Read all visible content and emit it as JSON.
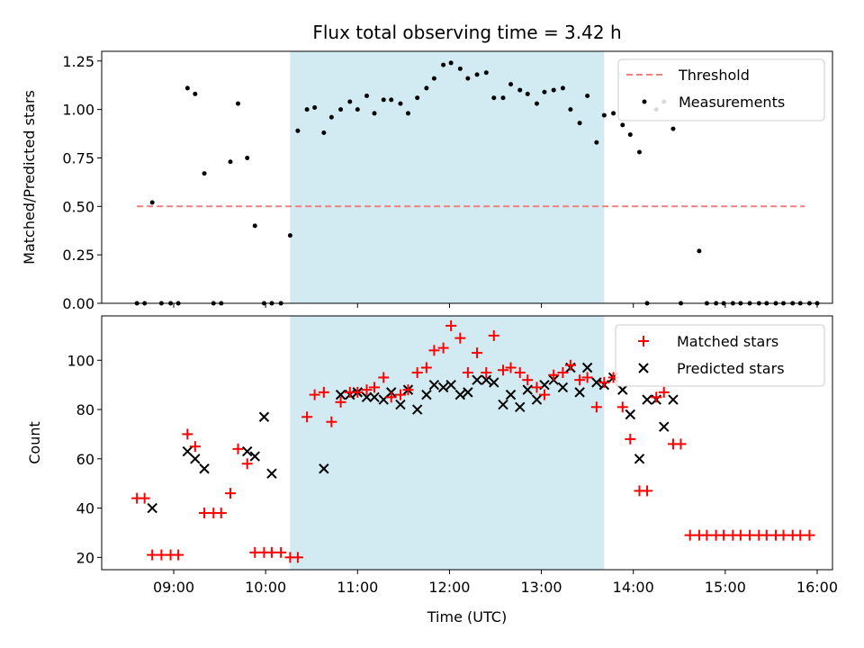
{
  "colors": {
    "threshold": "#f08080",
    "measurement": "#000000",
    "matched": "#ff0000",
    "predicted": "#000000",
    "shade": "#add8e6"
  },
  "chart_data": [
    {
      "type": "scatter",
      "title": "Flux total observing time = 3.42 h",
      "xlabel": "",
      "ylabel": "Matched/Predicted stars",
      "x_unit": "hours UTC",
      "xlim": [
        "08:13",
        "16:10"
      ],
      "ylim": [
        0,
        1.3
      ],
      "yticks": [
        "0.00",
        "0.25",
        "0.50",
        "0.75",
        "1.00",
        "1.25"
      ],
      "ytick_values": [
        0,
        0.25,
        0.5,
        0.75,
        1.0,
        1.25
      ],
      "shaded_interval": [
        "10:16",
        "13:41"
      ],
      "legend": {
        "position": "top-right",
        "entries": [
          "Threshold",
          "Measurements"
        ]
      },
      "threshold": {
        "name": "Threshold",
        "value": 0.5,
        "x": [
          "08:36",
          "15:52"
        ]
      },
      "series": [
        {
          "name": "Measurements",
          "x": [
            "08:36",
            "08:41",
            "08:46",
            "08:52",
            "08:58",
            "09:03",
            "09:09",
            "09:14",
            "09:20",
            "09:26",
            "09:31",
            "09:37",
            "09:42",
            "09:48",
            "09:53",
            "09:59",
            "10:04",
            "10:10",
            "10:16",
            "10:21",
            "10:27",
            "10:32",
            "10:38",
            "10:43",
            "10:49",
            "10:55",
            "11:00",
            "11:06",
            "11:11",
            "11:17",
            "11:22",
            "11:28",
            "11:33",
            "11:39",
            "11:45",
            "11:50",
            "11:56",
            "12:01",
            "12:07",
            "12:12",
            "12:18",
            "12:24",
            "12:29",
            "12:35",
            "12:40",
            "12:46",
            "12:51",
            "12:57",
            "13:02",
            "13:08",
            "13:14",
            "13:19",
            "13:25",
            "13:30",
            "13:36",
            "13:41",
            "13:47",
            "13:53",
            "13:58",
            "14:04",
            "14:09",
            "14:15",
            "14:20",
            "14:26",
            "14:31",
            "14:37",
            "14:43",
            "14:48",
            "14:54",
            "14:59",
            "15:05",
            "15:10",
            "15:16",
            "15:22",
            "15:27",
            "15:33",
            "15:38",
            "15:44",
            "15:49",
            "15:55",
            "16:00"
          ],
          "y": [
            0,
            0,
            0.52,
            0,
            0,
            0,
            1.11,
            1.08,
            0.67,
            0,
            0,
            0.73,
            1.03,
            0.75,
            0.4,
            0,
            0,
            0,
            0.35,
            0.89,
            1.0,
            1.01,
            0.88,
            0.96,
            1.0,
            1.04,
            1.0,
            1.07,
            0.98,
            1.05,
            1.05,
            1.03,
            0.98,
            1.06,
            1.11,
            1.16,
            1.23,
            1.24,
            1.21,
            1.16,
            1.18,
            1.19,
            1.06,
            1.06,
            1.13,
            1.1,
            1.08,
            1.03,
            1.09,
            1.1,
            1.11,
            1.0,
            0.93,
            1.07,
            0.83,
            0.97,
            0.98,
            0.92,
            0.87,
            0.78,
            0,
            1.0,
            1.04,
            0.9,
            0,
            1.02,
            0.27,
            0,
            0,
            0,
            0,
            0,
            0,
            0,
            0,
            0,
            0,
            0,
            0,
            0,
            0
          ]
        }
      ]
    },
    {
      "type": "scatter",
      "title": "",
      "xlabel": "Time (UTC)",
      "ylabel": "Count",
      "x_unit": "hours UTC",
      "xlim": [
        "08:13",
        "16:10"
      ],
      "ylim": [
        15,
        118
      ],
      "xticks": [
        "09:00",
        "10:00",
        "11:00",
        "12:00",
        "13:00",
        "14:00",
        "15:00",
        "16:00"
      ],
      "yticks": [
        "20",
        "40",
        "60",
        "80",
        "100"
      ],
      "ytick_values": [
        20,
        40,
        60,
        80,
        100
      ],
      "shaded_interval": [
        "10:16",
        "13:41"
      ],
      "legend": {
        "position": "top-right",
        "entries": [
          "Matched stars",
          "Predicted stars"
        ]
      },
      "series": [
        {
          "name": "Matched stars",
          "x": [
            "08:36",
            "08:41",
            "08:46",
            "08:52",
            "08:58",
            "09:03",
            "09:09",
            "09:14",
            "09:20",
            "09:26",
            "09:31",
            "09:37",
            "09:42",
            "09:48",
            "09:53",
            "09:59",
            "10:04",
            "10:10",
            "10:16",
            "10:21",
            "10:27",
            "10:32",
            "10:38",
            "10:43",
            "10:49",
            "10:55",
            "11:00",
            "11:06",
            "11:11",
            "11:17",
            "11:22",
            "11:28",
            "11:33",
            "11:39",
            "11:45",
            "11:50",
            "11:56",
            "12:01",
            "12:07",
            "12:12",
            "12:18",
            "12:24",
            "12:29",
            "12:35",
            "12:40",
            "12:46",
            "12:51",
            "12:57",
            "13:02",
            "13:08",
            "13:14",
            "13:19",
            "13:25",
            "13:30",
            "13:36",
            "13:41",
            "13:47",
            "13:53",
            "13:58",
            "14:04",
            "14:09",
            "14:15",
            "14:20",
            "14:26",
            "14:31",
            "14:37",
            "14:43",
            "14:48",
            "14:54",
            "14:59",
            "15:05",
            "15:10",
            "15:16",
            "15:22",
            "15:27",
            "15:33",
            "15:38",
            "15:44",
            "15:49",
            "15:55"
          ],
          "y": [
            44,
            44,
            21,
            21,
            21,
            21,
            70,
            65,
            38,
            38,
            38,
            46,
            64,
            58,
            22,
            22,
            22,
            22,
            20,
            20,
            77,
            86,
            87,
            75,
            83,
            87,
            87,
            88,
            89,
            93,
            85,
            86,
            88,
            95,
            97,
            104,
            105,
            114,
            109,
            95,
            103,
            95,
            110,
            96,
            97,
            95,
            92,
            89,
            86,
            94,
            95,
            98,
            92,
            93,
            81,
            91,
            93,
            81,
            68,
            47,
            47,
            85,
            87,
            66,
            66,
            29,
            29,
            29,
            29,
            29,
            29,
            29,
            29,
            29,
            29,
            29,
            29,
            29,
            29,
            29
          ]
        },
        {
          "name": "Predicted stars",
          "x": [
            "08:46",
            "09:09",
            "09:14",
            "09:20",
            "09:48",
            "09:53",
            "09:59",
            "10:04",
            "10:38",
            "10:49",
            "10:55",
            "11:00",
            "11:06",
            "11:11",
            "11:17",
            "11:22",
            "11:28",
            "11:33",
            "11:39",
            "11:45",
            "11:50",
            "11:56",
            "12:01",
            "12:07",
            "12:12",
            "12:18",
            "12:24",
            "12:29",
            "12:35",
            "12:40",
            "12:46",
            "12:51",
            "12:57",
            "13:02",
            "13:08",
            "13:14",
            "13:19",
            "13:25",
            "13:30",
            "13:36",
            "13:41",
            "13:47",
            "13:53",
            "13:58",
            "14:04",
            "14:09",
            "14:15",
            "14:20",
            "14:26"
          ],
          "y": [
            40,
            63,
            60,
            56,
            63,
            61,
            77,
            54,
            56,
            86,
            86,
            87,
            85,
            85,
            84,
            87,
            82,
            88,
            80,
            86,
            90,
            89,
            90,
            86,
            87,
            92,
            92,
            91,
            82,
            86,
            81,
            88,
            84,
            90,
            92,
            89,
            97,
            87,
            97,
            91,
            90,
            93,
            88,
            78,
            60,
            84,
            84,
            73,
            84
          ]
        }
      ]
    }
  ]
}
